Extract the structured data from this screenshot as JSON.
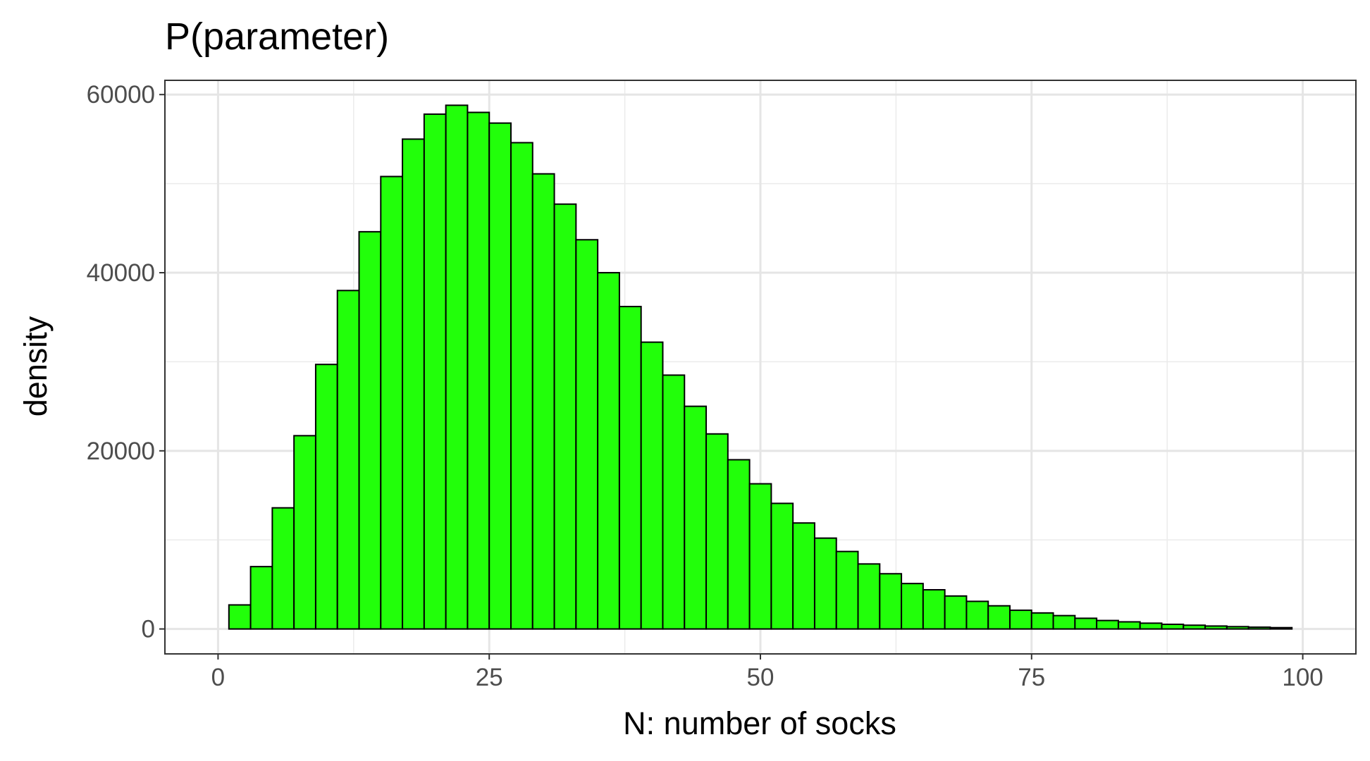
{
  "chart_data": {
    "type": "bar",
    "title": "P(parameter)",
    "xlabel": "N: number of socks",
    "ylabel": "density",
    "xlim": [
      -4.9,
      104.9
    ],
    "ylim": [
      -2800,
      61600
    ],
    "xticks": [
      0,
      25,
      50,
      75,
      100
    ],
    "yticks": [
      0,
      20000,
      40000,
      60000
    ],
    "x_tick_labels": [
      "0",
      "25",
      "50",
      "75",
      "100"
    ],
    "y_tick_labels": [
      "0",
      "20000",
      "40000",
      "60000"
    ],
    "bin_width": 2,
    "bins_start": 1,
    "values": [
      2700,
      7000,
      13600,
      21700,
      29700,
      38000,
      44600,
      50800,
      55000,
      57800,
      58800,
      58000,
      56800,
      54600,
      51100,
      47700,
      43700,
      40000,
      36200,
      32200,
      28500,
      25000,
      21900,
      19000,
      16300,
      14100,
      11900,
      10200,
      8700,
      7300,
      6200,
      5100,
      4400,
      3700,
      3100,
      2600,
      2100,
      1800,
      1500,
      1200,
      950,
      800,
      650,
      520,
      420,
      330,
      260,
      200,
      150
    ],
    "bar_fill": "#22ff0a",
    "bar_stroke": "#000000",
    "grid": true,
    "theme": "bw"
  }
}
